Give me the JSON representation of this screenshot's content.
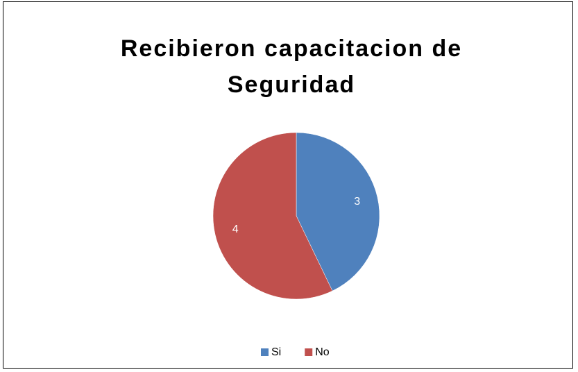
{
  "chart_data": {
    "type": "pie",
    "title": "Recibieron capacitacion de Seguridad",
    "categories": [
      "Si",
      "No"
    ],
    "values": [
      3,
      4
    ],
    "colors": [
      "#4f81bd",
      "#c0504d"
    ],
    "legend": "bottom"
  }
}
